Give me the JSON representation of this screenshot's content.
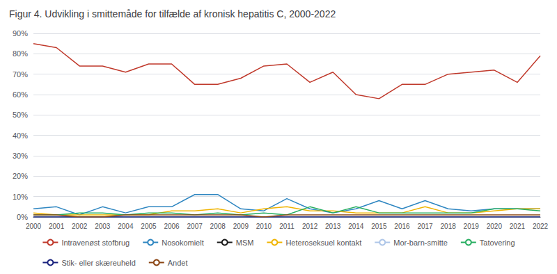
{
  "chart_data": {
    "type": "line",
    "title": "Figur 4. Udvikling i smittemåde for tilfælde af kronisk hepatitis C, 2000-2022",
    "x": [
      2000,
      2001,
      2002,
      2003,
      2004,
      2005,
      2006,
      2007,
      2008,
      2009,
      2010,
      2011,
      2012,
      2013,
      2014,
      2015,
      2016,
      2017,
      2018,
      2019,
      2020,
      2021,
      2022
    ],
    "series": [
      {
        "name": "Intravenøst stofbrug",
        "color": "#c0392b",
        "values": [
          85,
          83,
          74,
          74,
          71,
          75,
          75,
          65,
          65,
          68,
          74,
          75,
          66,
          71,
          60,
          58,
          65,
          65,
          70,
          71,
          72,
          66,
          79
        ]
      },
      {
        "name": "Nosokomielt",
        "color": "#2e86c1",
        "values": [
          4,
          5,
          1,
          5,
          2,
          5,
          5,
          11,
          11,
          4,
          3,
          9,
          4,
          2,
          4,
          8,
          4,
          8,
          4,
          3,
          4,
          4,
          4
        ]
      },
      {
        "name": "MSM",
        "color": "#1a1a1a",
        "values": [
          0,
          0,
          0,
          0,
          0,
          0,
          0,
          0,
          0,
          0,
          0,
          0,
          0,
          0,
          0,
          0,
          0,
          0,
          0,
          0,
          0,
          0,
          0
        ]
      },
      {
        "name": "Heteroseksuel kontakt",
        "color": "#f0b400",
        "values": [
          2,
          1,
          1,
          1,
          1,
          1,
          3,
          3,
          4,
          2,
          4,
          5,
          3,
          3,
          2,
          2,
          2,
          5,
          2,
          2,
          3,
          4,
          4
        ]
      },
      {
        "name": "Mor-barn-smitte",
        "color": "#aec6e8",
        "values": [
          0,
          0,
          0,
          0,
          0,
          0,
          0,
          0,
          0,
          0,
          0,
          0,
          0,
          0,
          0,
          0,
          0,
          0,
          0,
          0,
          0,
          0,
          0
        ]
      },
      {
        "name": "Tatovering",
        "color": "#27ae60",
        "values": [
          1,
          1,
          2,
          2,
          1,
          2,
          2,
          1,
          2,
          1,
          2,
          1,
          5,
          2,
          5,
          2,
          2,
          2,
          2,
          2,
          4,
          4,
          3
        ]
      },
      {
        "name": "Stik- eller skæreuheld",
        "color": "#1a237e",
        "values": [
          0,
          0,
          0,
          0,
          0,
          0,
          0,
          0,
          0,
          0,
          0,
          0,
          0,
          0,
          0,
          0,
          0,
          0,
          0,
          0,
          0,
          0,
          0
        ]
      },
      {
        "name": "Andet",
        "color": "#8b4513",
        "values": [
          1,
          1,
          0,
          0,
          1,
          1,
          1,
          1,
          1,
          1,
          0,
          1,
          1,
          1,
          1,
          1,
          1,
          1,
          1,
          1,
          1,
          1,
          1
        ]
      }
    ],
    "xlim": [
      2000,
      2022
    ],
    "xticks": [
      2000,
      2001,
      2002,
      2003,
      2004,
      2005,
      2006,
      2007,
      2008,
      2009,
      2010,
      2011,
      2012,
      2013,
      2014,
      2015,
      2016,
      2017,
      2018,
      2019,
      2020,
      2021,
      2022
    ],
    "ylim": [
      0,
      90
    ],
    "yticks": [
      {
        "value": 0,
        "label": "0%"
      },
      {
        "value": 10,
        "label": "10%"
      },
      {
        "value": 20,
        "label": "20%"
      },
      {
        "value": 30,
        "label": "30%"
      },
      {
        "value": 40,
        "label": "40%"
      },
      {
        "value": 50,
        "label": "50%"
      },
      {
        "value": 60,
        "label": "60%"
      },
      {
        "value": 70,
        "label": "70%"
      },
      {
        "value": 80,
        "label": "80%"
      },
      {
        "value": 90,
        "label": "90%"
      }
    ],
    "grid": true,
    "legend": "bottom"
  }
}
